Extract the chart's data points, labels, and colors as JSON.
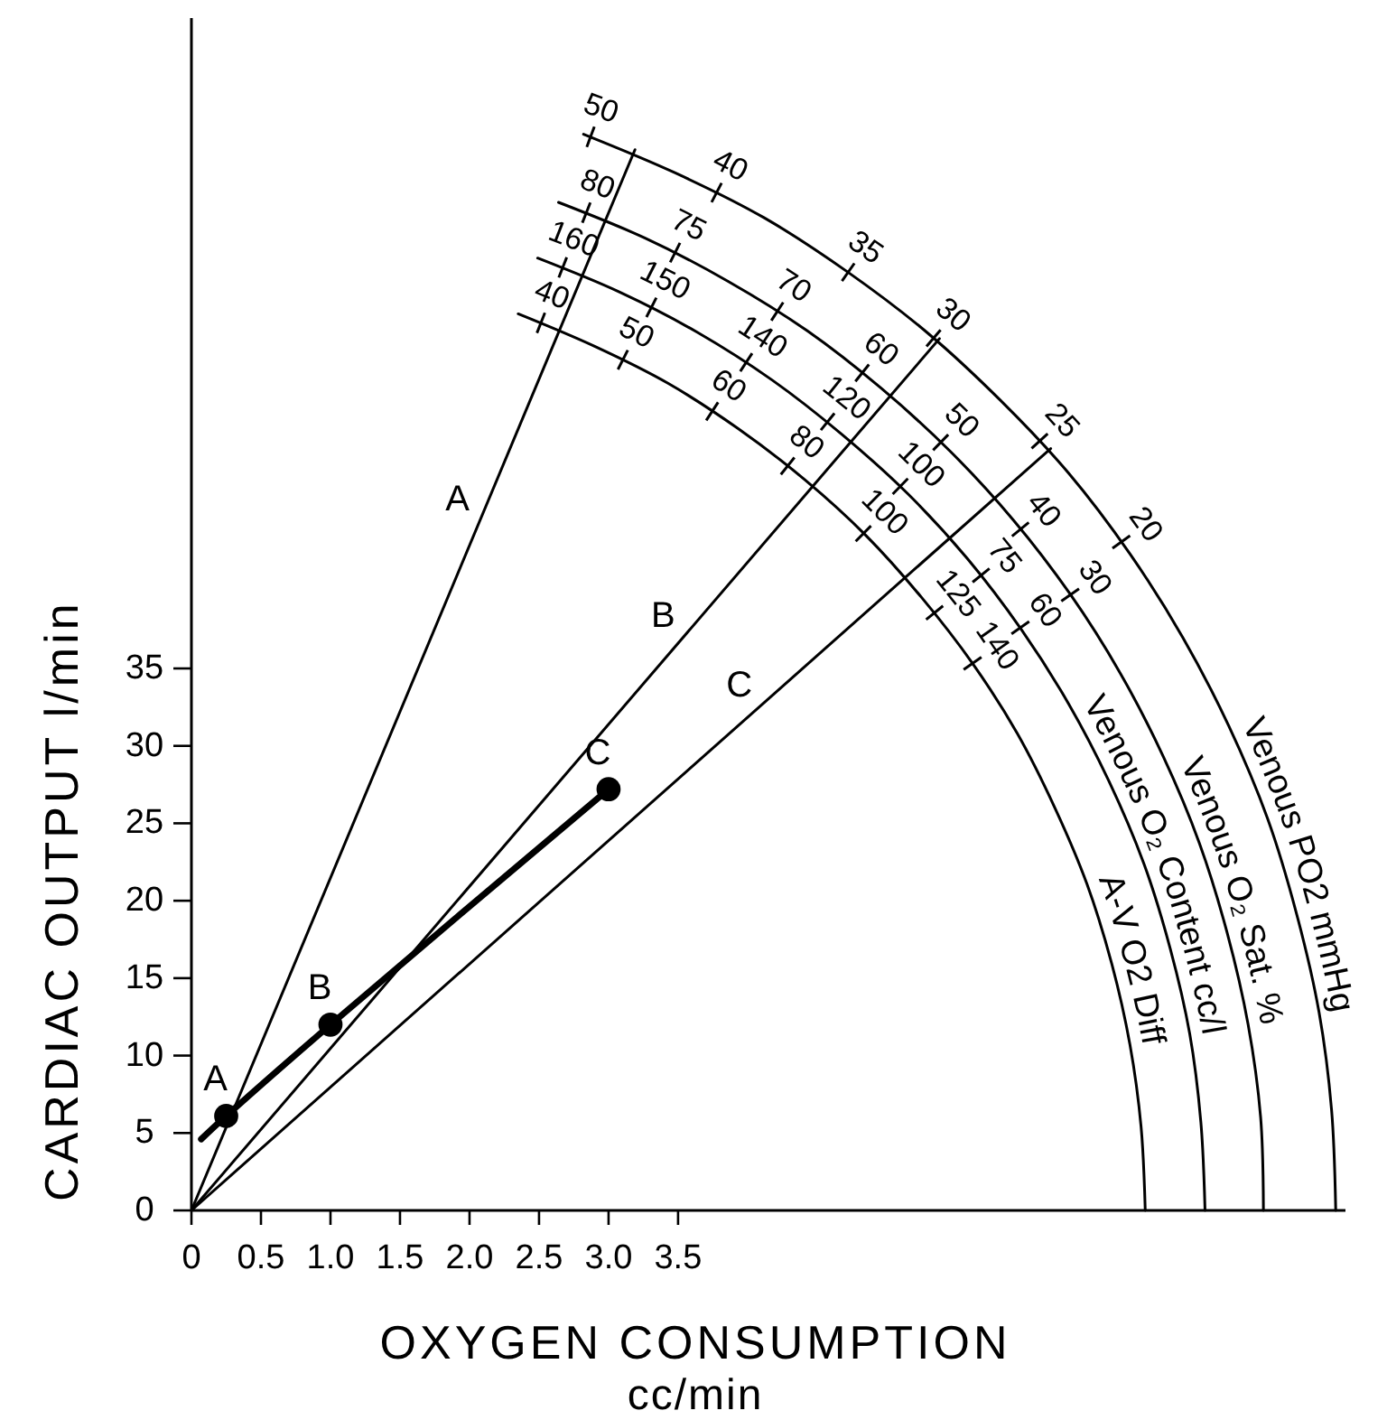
{
  "chart_data": {
    "type": "line",
    "xlabel": "OXYGEN CONSUMPTION\ncc/min",
    "ylabel": "CARDIAC OUTPUT l/min",
    "xlim": [
      0,
      8.3
    ],
    "ylim": [
      0,
      77
    ],
    "xticks": [
      0,
      0.5,
      {
        "value": 1,
        "label": "1.0"
      },
      1.5,
      {
        "value": 2,
        "label": "2.0"
      },
      2.5,
      {
        "value": 3,
        "label": "3.0"
      },
      3.5
    ],
    "yticks": [
      0,
      5,
      10,
      15,
      20,
      25,
      30,
      35
    ],
    "series": [
      {
        "type": "line",
        "color": "#000000",
        "x": [
          0.07,
          0.25,
          1.0,
          3.0
        ],
        "values": [
          4.6,
          6.1,
          12,
          27.2
        ]
      },
      {
        "type": "scatter",
        "color": "#000000",
        "marker": "circle",
        "x": [
          0.25,
          1.0,
          3.0
        ],
        "values": [
          6.1,
          12,
          27.2
        ]
      },
      {
        "type": "line",
        "name": "A",
        "color": "#000000",
        "x": [
          0,
          3.19
        ],
        "values": [
          0,
          68.5
        ]
      },
      {
        "type": "line",
        "name": "B",
        "color": "#000000",
        "x": [
          0,
          5.38
        ],
        "values": [
          0,
          56.3
        ]
      },
      {
        "type": "line",
        "name": "C",
        "color": "#000000",
        "x": [
          0,
          6.18
        ],
        "values": [
          0,
          49.2
        ]
      },
      {
        "type": "line",
        "name": "Venous PO2 mmHg",
        "color": "#000000",
        "x": [
          2.82,
          3.48,
          4.12,
          4.72,
          5.29,
          5.82,
          6.31,
          6.75,
          7.13,
          7.46,
          7.74,
          7.95,
          8.11,
          8.2,
          8.23
        ],
        "values": [
          69.5,
          67.0,
          64.1,
          60.6,
          56.7,
          52.3,
          47.6,
          42.4,
          37.0,
          31.3,
          25.3,
          19.1,
          12.8,
          6.5,
          0
        ]
      },
      {
        "type": "line",
        "name": "Venous O₂ Sat. %",
        "color": "#000000",
        "x": [
          2.64,
          3.26,
          3.86,
          4.43,
          4.96,
          5.46,
          5.91,
          6.32,
          6.68,
          6.99,
          7.25,
          7.45,
          7.6,
          7.69,
          7.71
        ],
        "values": [
          65.1,
          62.8,
          60.0,
          56.8,
          53.1,
          49.0,
          44.6,
          39.8,
          34.7,
          29.3,
          23.7,
          17.9,
          12.0,
          6.0,
          0
        ]
      },
      {
        "type": "line",
        "name": "Venous O₂ Content cc/l",
        "color": "#000000",
        "x": [
          2.49,
          3.08,
          3.64,
          4.18,
          4.68,
          5.15,
          5.58,
          5.97,
          6.31,
          6.6,
          6.85,
          7.04,
          7.18,
          7.26,
          7.29
        ],
        "values": [
          61.5,
          59.3,
          56.7,
          53.6,
          50.1,
          46.3,
          42.1,
          37.5,
          32.7,
          27.7,
          22.4,
          16.9,
          11.4,
          5.7,
          0
        ]
      },
      {
        "type": "line",
        "name": "A-V O2 Diff",
        "color": "#000000",
        "x": [
          2.35,
          2.9,
          3.43,
          3.93,
          4.41,
          4.85,
          5.25,
          5.62,
          5.94,
          6.21,
          6.44,
          6.62,
          6.75,
          6.83,
          6.86
        ],
        "values": [
          57.9,
          55.8,
          53.4,
          50.5,
          47.2,
          43.6,
          39.6,
          35.3,
          30.8,
          26.0,
          21.1,
          15.9,
          10.7,
          5.4,
          0
        ]
      }
    ],
    "annotations": [
      {
        "text": "A",
        "x": 0.25,
        "y": 6.1
      },
      {
        "text": "B",
        "x": 1.0,
        "y": 12
      },
      {
        "text": "C",
        "x": 3.0,
        "y": 27.2
      },
      "50",
      "40",
      "35",
      "30",
      "25",
      "20",
      "80",
      "75",
      "70",
      "60",
      "50",
      "40",
      "30",
      "160",
      "150",
      "140",
      "120",
      "100",
      "75",
      "60",
      "40",
      "50",
      "60",
      "80",
      "100",
      "125",
      "140"
    ]
  }
}
